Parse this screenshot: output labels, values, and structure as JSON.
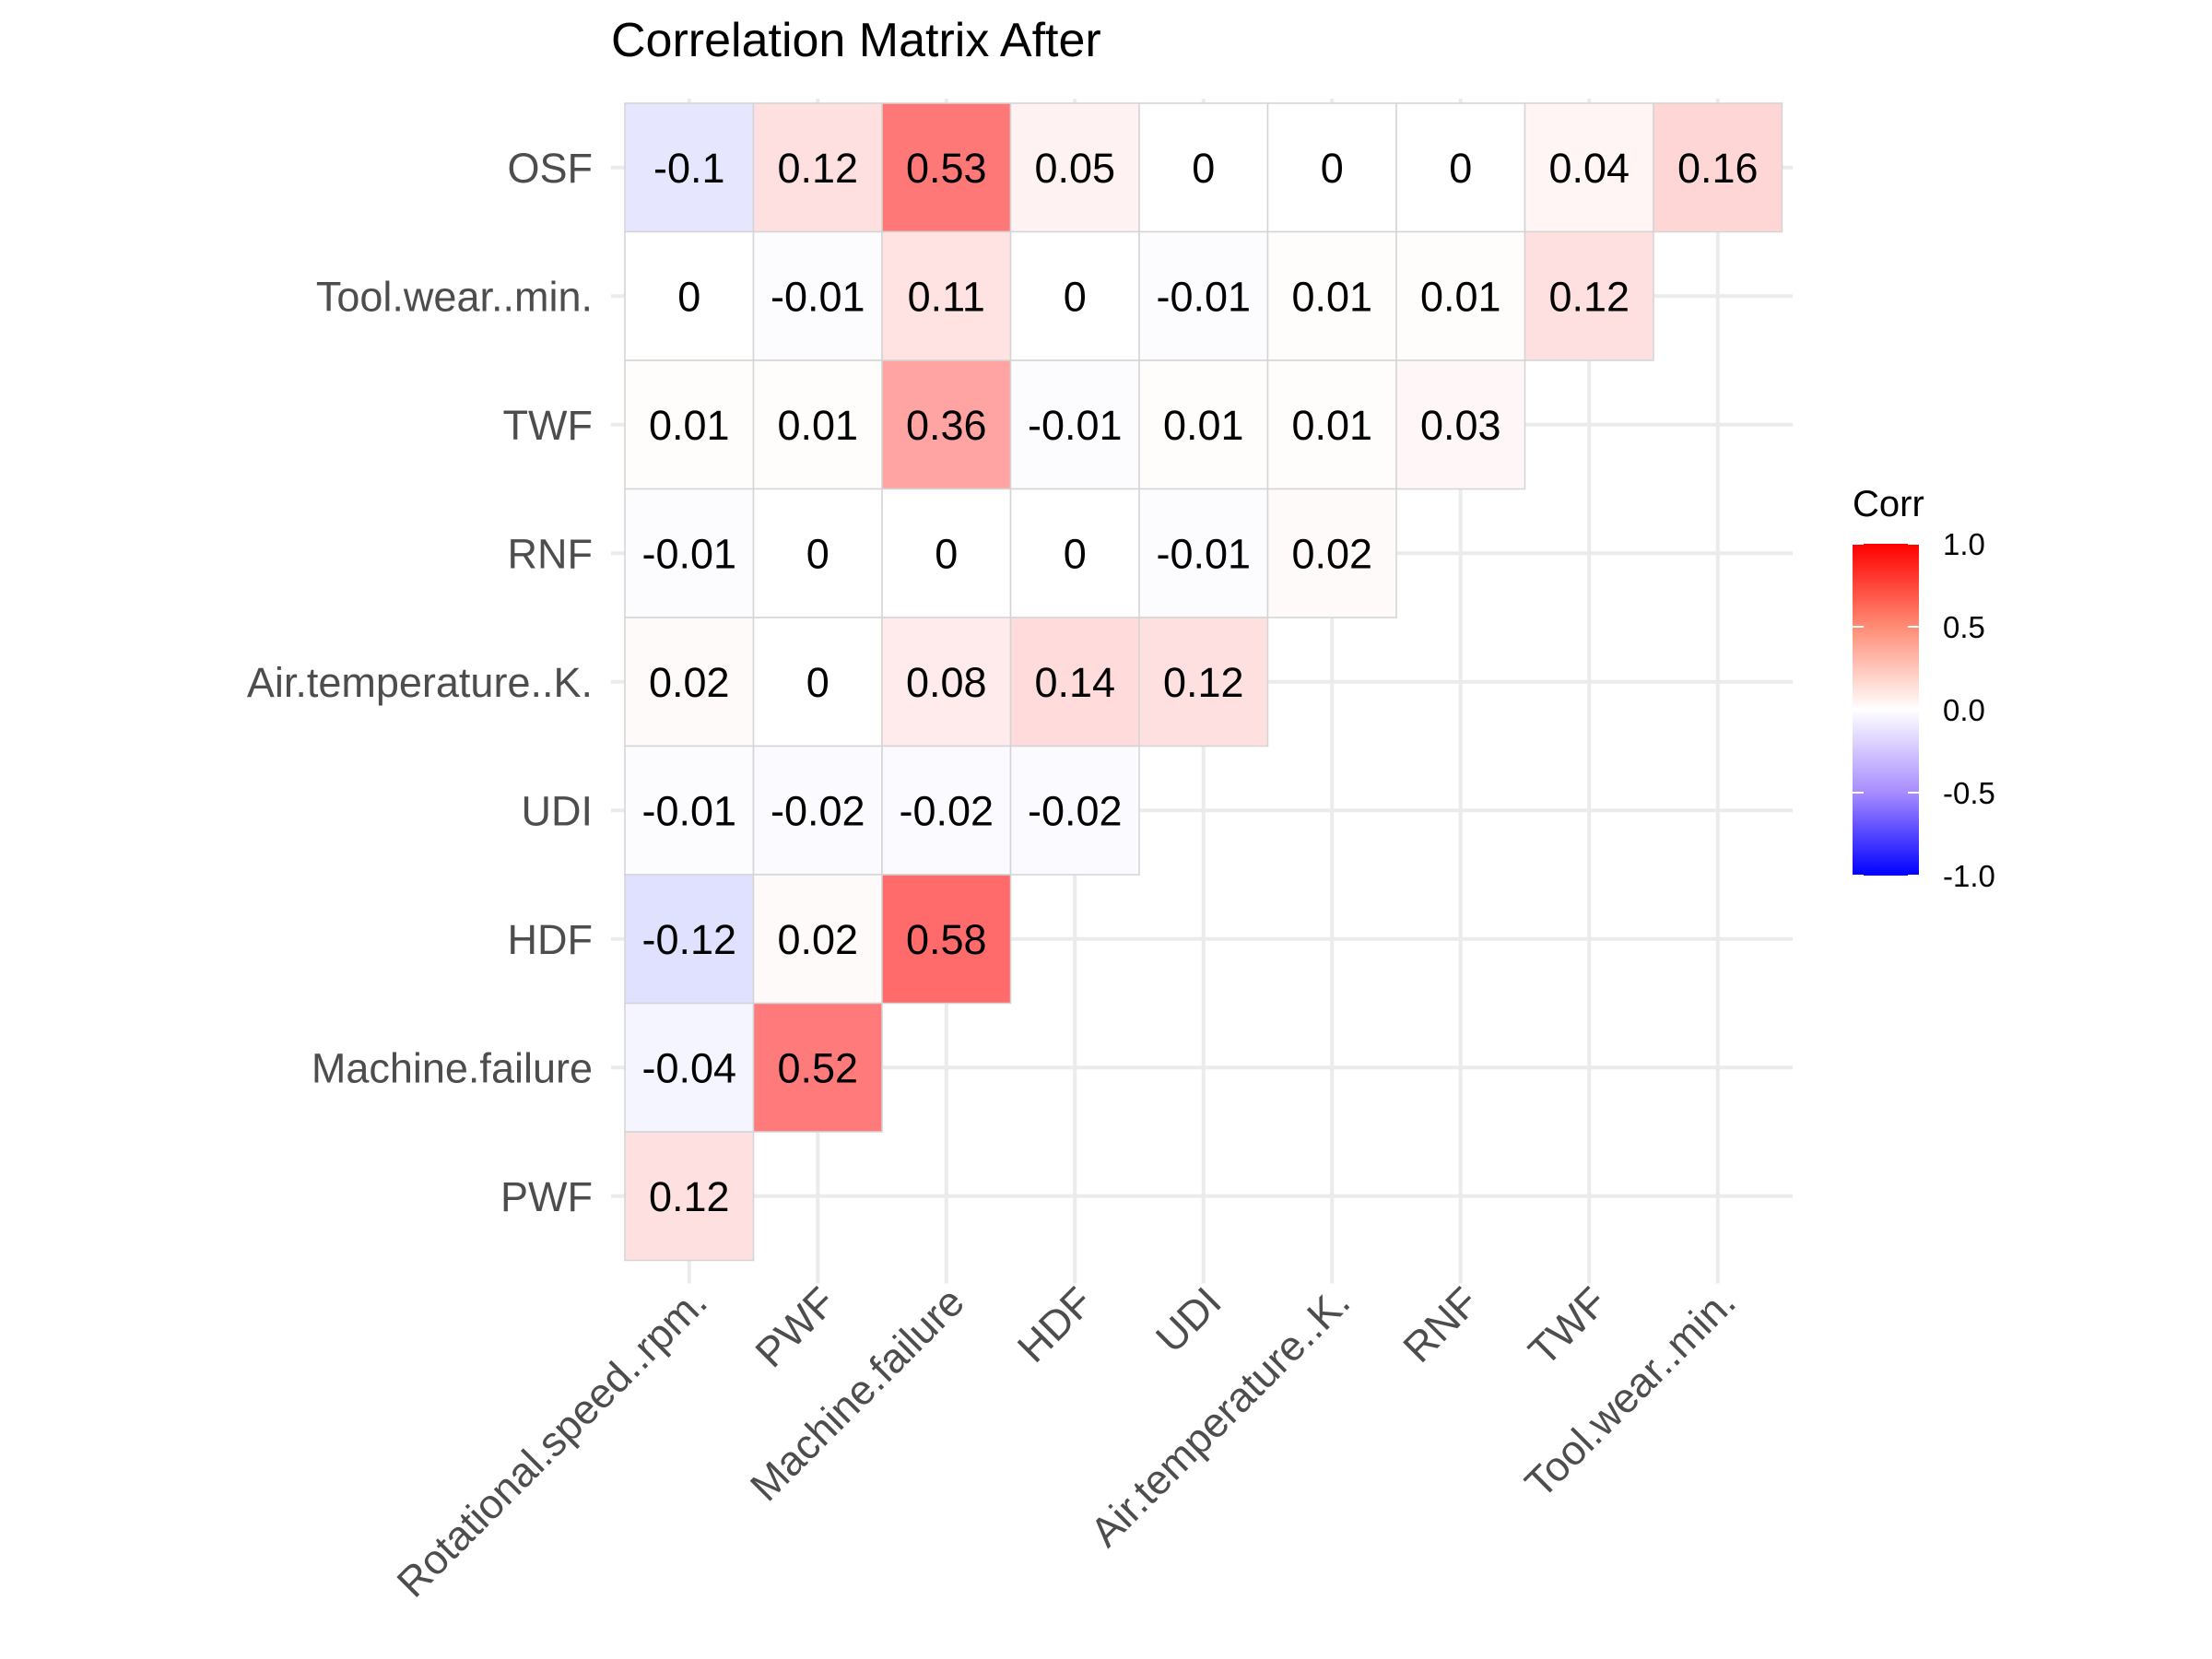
{
  "chart_data": {
    "type": "heatmap",
    "title": "Correlation Matrix After",
    "x_categories": [
      "Rotational.speed..rpm.",
      "PWF",
      "Machine.failure",
      "HDF",
      "UDI",
      "Air.temperature..K.",
      "RNF",
      "TWF",
      "Tool.wear..min."
    ],
    "y_categories": [
      "OSF",
      "Tool.wear..min.",
      "TWF",
      "RNF",
      "Air.temperature..K.",
      "UDI",
      "HDF",
      "Machine.failure",
      "PWF"
    ],
    "rows": [
      {
        "label": "OSF",
        "cells": [
          {
            "x": "Rotational.speed..rpm.",
            "value": -0.1,
            "text": "-0.1"
          },
          {
            "x": "PWF",
            "value": 0.12,
            "text": "0.12"
          },
          {
            "x": "Machine.failure",
            "value": 0.53,
            "text": "0.53"
          },
          {
            "x": "HDF",
            "value": 0.05,
            "text": "0.05"
          },
          {
            "x": "UDI",
            "value": 0,
            "text": "0"
          },
          {
            "x": "Air.temperature..K.",
            "value": 0,
            "text": "0"
          },
          {
            "x": "RNF",
            "value": 0,
            "text": "0"
          },
          {
            "x": "TWF",
            "value": 0.04,
            "text": "0.04"
          },
          {
            "x": "Tool.wear..min.",
            "value": 0.16,
            "text": "0.16"
          }
        ]
      },
      {
        "label": "Tool.wear..min.",
        "cells": [
          {
            "x": "Rotational.speed..rpm.",
            "value": 0,
            "text": "0"
          },
          {
            "x": "PWF",
            "value": -0.01,
            "text": "-0.01"
          },
          {
            "x": "Machine.failure",
            "value": 0.11,
            "text": "0.11"
          },
          {
            "x": "HDF",
            "value": 0,
            "text": "0"
          },
          {
            "x": "UDI",
            "value": -0.01,
            "text": "-0.01"
          },
          {
            "x": "Air.temperature..K.",
            "value": 0.01,
            "text": "0.01"
          },
          {
            "x": "RNF",
            "value": 0.01,
            "text": "0.01"
          },
          {
            "x": "TWF",
            "value": 0.12,
            "text": "0.12"
          }
        ]
      },
      {
        "label": "TWF",
        "cells": [
          {
            "x": "Rotational.speed..rpm.",
            "value": 0.01,
            "text": "0.01"
          },
          {
            "x": "PWF",
            "value": 0.01,
            "text": "0.01"
          },
          {
            "x": "Machine.failure",
            "value": 0.36,
            "text": "0.36"
          },
          {
            "x": "HDF",
            "value": -0.01,
            "text": "-0.01"
          },
          {
            "x": "UDI",
            "value": 0.01,
            "text": "0.01"
          },
          {
            "x": "Air.temperature..K.",
            "value": 0.01,
            "text": "0.01"
          },
          {
            "x": "RNF",
            "value": 0.03,
            "text": "0.03"
          }
        ]
      },
      {
        "label": "RNF",
        "cells": [
          {
            "x": "Rotational.speed..rpm.",
            "value": -0.01,
            "text": "-0.01"
          },
          {
            "x": "PWF",
            "value": 0,
            "text": "0"
          },
          {
            "x": "Machine.failure",
            "value": 0,
            "text": "0"
          },
          {
            "x": "HDF",
            "value": 0,
            "text": "0"
          },
          {
            "x": "UDI",
            "value": -0.01,
            "text": "-0.01"
          },
          {
            "x": "Air.temperature..K.",
            "value": 0.02,
            "text": "0.02"
          }
        ]
      },
      {
        "label": "Air.temperature..K.",
        "cells": [
          {
            "x": "Rotational.speed..rpm.",
            "value": 0.02,
            "text": "0.02"
          },
          {
            "x": "PWF",
            "value": 0,
            "text": "0"
          },
          {
            "x": "Machine.failure",
            "value": 0.08,
            "text": "0.08"
          },
          {
            "x": "HDF",
            "value": 0.14,
            "text": "0.14"
          },
          {
            "x": "UDI",
            "value": 0.12,
            "text": "0.12"
          }
        ]
      },
      {
        "label": "UDI",
        "cells": [
          {
            "x": "Rotational.speed..rpm.",
            "value": -0.01,
            "text": "-0.01"
          },
          {
            "x": "PWF",
            "value": -0.02,
            "text": "-0.02"
          },
          {
            "x": "Machine.failure",
            "value": -0.02,
            "text": "-0.02"
          },
          {
            "x": "HDF",
            "value": -0.02,
            "text": "-0.02"
          }
        ]
      },
      {
        "label": "HDF",
        "cells": [
          {
            "x": "Rotational.speed..rpm.",
            "value": -0.12,
            "text": "-0.12"
          },
          {
            "x": "PWF",
            "value": 0.02,
            "text": "0.02"
          },
          {
            "x": "Machine.failure",
            "value": 0.58,
            "text": "0.58"
          }
        ]
      },
      {
        "label": "Machine.failure",
        "cells": [
          {
            "x": "Rotational.speed..rpm.",
            "value": -0.04,
            "text": "-0.04"
          },
          {
            "x": "PWF",
            "value": 0.52,
            "text": "0.52"
          }
        ]
      },
      {
        "label": "PWF",
        "cells": [
          {
            "x": "Rotational.speed..rpm.",
            "value": 0.12,
            "text": "0.12"
          }
        ]
      }
    ],
    "legend": {
      "title": "Corr",
      "placement": "right",
      "limits": [
        -1,
        1
      ],
      "ticks": [
        1.0,
        0.5,
        0.0,
        -0.5,
        -1.0
      ],
      "tick_labels": [
        "1.0",
        "0.5",
        "0.0",
        "-0.5",
        "-1.0"
      ],
      "colors": {
        "low": "#0000ff",
        "mid": "#ffffff",
        "high": "#ff0000"
      }
    },
    "grid": true
  }
}
